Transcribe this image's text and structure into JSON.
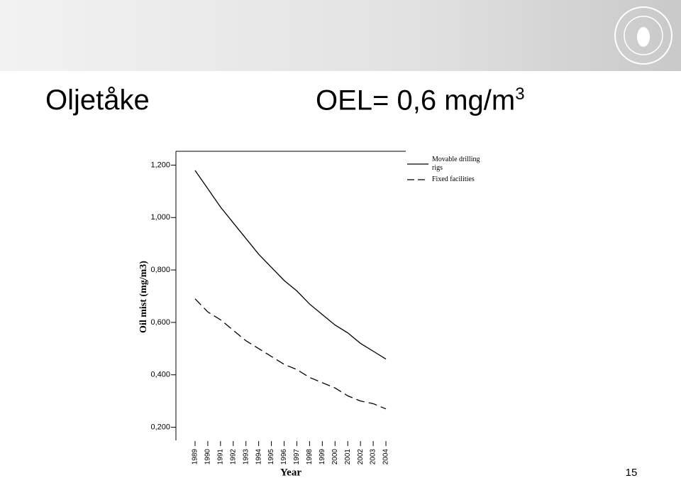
{
  "slide": {
    "title": "Oljetåke",
    "oel": {
      "text": "OEL= 0,6 mg/m",
      "superscript": "3"
    },
    "page_number": "15"
  },
  "chart_data": {
    "type": "line",
    "y_label": "Oil mist (mg/m3)",
    "x_label": "Year",
    "categories": [
      "1989",
      "1990",
      "1991",
      "1992",
      "1993",
      "1994",
      "1995",
      "1996",
      "1997",
      "1998",
      "1999",
      "2000",
      "2001",
      "2002",
      "2003",
      "2004"
    ],
    "series": [
      {
        "name": "Movable drilling rigs",
        "color": "#000000",
        "dash": "solid",
        "values": [
          1.18,
          1.11,
          1.04,
          0.98,
          0.92,
          0.86,
          0.81,
          0.76,
          0.72,
          0.67,
          0.63,
          0.59,
          0.56,
          0.52,
          0.49,
          0.46
        ]
      },
      {
        "name": "Fixed facilities",
        "color": "#000000",
        "dash": "dashed",
        "values": [
          0.69,
          0.64,
          0.61,
          0.57,
          0.53,
          0.5,
          0.47,
          0.44,
          0.42,
          0.39,
          0.37,
          0.35,
          0.32,
          0.3,
          0.29,
          0.27
        ]
      }
    ],
    "ylim": [
      0.15,
      1.25
    ],
    "yticks": [
      {
        "value": 0.2,
        "label": "0,200"
      },
      {
        "value": 0.4,
        "label": "0,400"
      },
      {
        "value": 0.6,
        "label": "0,600"
      },
      {
        "value": 0.8,
        "label": "0,800"
      },
      {
        "value": 1.0,
        "label": "1,000"
      },
      {
        "value": 1.2,
        "label": "1,200"
      }
    ],
    "legend": "top-right"
  }
}
